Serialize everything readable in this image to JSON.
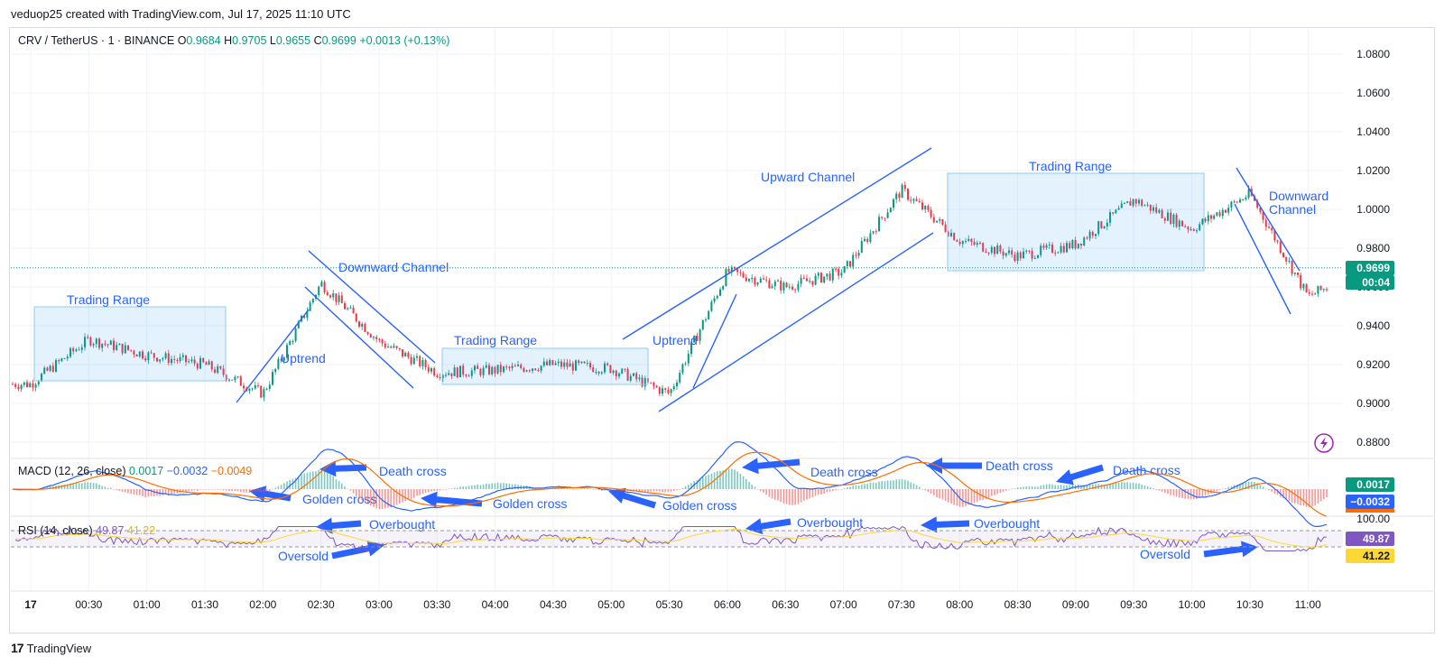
{
  "header": {
    "credit": "veduop25 created with TradingView.com, Jul 17, 2025 11:10 UTC"
  },
  "symbol": {
    "name": "CRV / TetherUS · 1 · BINANCE",
    "o_label": "O",
    "o": "0.9684",
    "h_label": "H",
    "h": "0.9705",
    "l_label": "L",
    "l": "0.9655",
    "c_label": "C",
    "c": "0.9699",
    "change": "+0.0013 (+0.13%)"
  },
  "colors": {
    "up": "#089981",
    "down": "#f23645",
    "annotation": "#2962ff",
    "macd": "#2962ff",
    "signal": "#ff6d00",
    "rsi": "#7e57c2",
    "rsi_ma": "#fdd835"
  },
  "price_axis": {
    "ticks": [
      "1.0800",
      "1.0600",
      "1.0400",
      "1.0200",
      "1.0000",
      "0.9800",
      "0.9600",
      "0.9400",
      "0.9200",
      "0.9000",
      "0.8800"
    ],
    "last_price": "0.9699",
    "countdown": "00:04"
  },
  "macd": {
    "legend": "MACD (12, 26, close)",
    "hist": "0.0017",
    "macd": "−0.0032",
    "signal": "−0.0049",
    "badge_hist": "0.0017",
    "badge_macd": "−0.0032"
  },
  "rsi": {
    "legend": "RSI (14, close)",
    "value": "49.87",
    "ma": "41.22",
    "axis_label": "100.00",
    "badge_value": "49.87",
    "badge_ma": "41.22"
  },
  "time_axis": {
    "ticks": [
      "17",
      "00:30",
      "01:00",
      "01:30",
      "02:00",
      "02:30",
      "03:00",
      "03:30",
      "04:00",
      "04:30",
      "05:00",
      "05:30",
      "06:00",
      "06:30",
      "07:00",
      "07:30",
      "08:00",
      "08:30",
      "09:00",
      "09:30",
      "10:00",
      "10:30",
      "11:00"
    ]
  },
  "annotations": {
    "trading_range_1": "Trading Range",
    "trading_range_2": "Trading Range",
    "trading_range_3": "Trading Range",
    "uptrend_1": "Uptrend",
    "uptrend_2": "Uptrend",
    "downward_channel_1": "Downward Channel",
    "upward_channel": "Upward Channel",
    "downward_channel_2_line1": "Downward",
    "downward_channel_2_line2": "Channel",
    "death_cross_1": "Death cross",
    "death_cross_2": "Death cross",
    "death_cross_3": "Death cross",
    "death_cross_4": "Death cross",
    "golden_cross_1": "Golden cross",
    "golden_cross_2": "Golden cross",
    "golden_cross_3": "Golden cross",
    "overbought_1": "Overbought",
    "overbought_2": "Overbought",
    "overbought_3": "Overbought",
    "oversold_1": "Oversold",
    "oversold_2": "Oversold"
  },
  "footer": {
    "brand": "TradingView"
  },
  "chart_data": {
    "type": "line",
    "title": "CRV / TetherUS · 1 · BINANCE",
    "ylim": [
      0.875,
      1.09
    ],
    "x": [
      "00:00",
      "00:30",
      "01:00",
      "01:30",
      "02:00",
      "02:30",
      "03:00",
      "03:30",
      "04:00",
      "04:30",
      "05:00",
      "05:30",
      "06:00",
      "06:30",
      "07:00",
      "07:30",
      "08:00",
      "08:30",
      "09:00",
      "09:30",
      "10:00",
      "10:30",
      "11:00",
      "11:10"
    ],
    "series": [
      {
        "name": "CRV / TetherUS",
        "values": [
          0.91,
          0.933,
          0.925,
          0.92,
          0.905,
          0.962,
          0.932,
          0.916,
          0.917,
          0.92,
          0.918,
          0.905,
          0.968,
          0.96,
          0.968,
          1.01,
          0.984,
          0.976,
          0.982,
          1.005,
          0.99,
          1.008,
          0.955,
          0.9699
        ]
      }
    ]
  }
}
